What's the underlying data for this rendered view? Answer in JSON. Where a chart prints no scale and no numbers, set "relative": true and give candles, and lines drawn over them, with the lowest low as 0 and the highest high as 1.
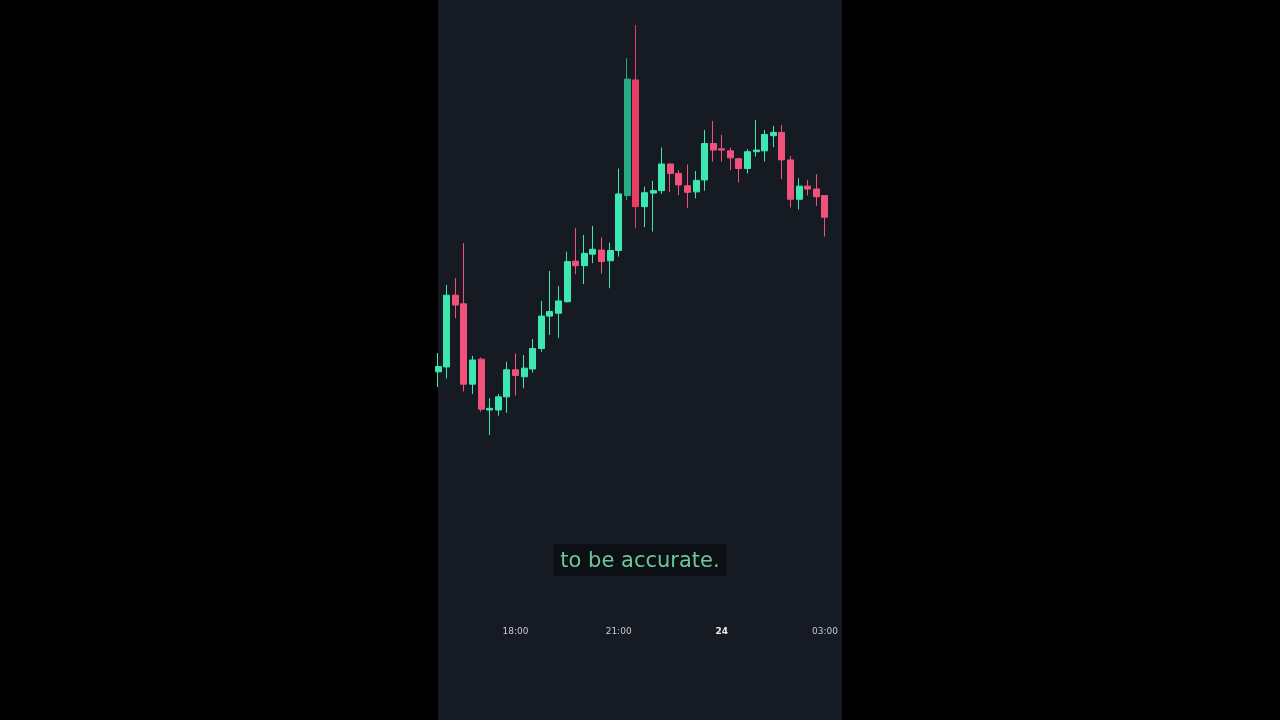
{
  "chart_data": {
    "type": "candlestick",
    "relative": true,
    "categories": [
      null,
      null,
      null,
      null,
      null,
      null,
      null,
      null,
      null,
      "18:00",
      null,
      null,
      null,
      null,
      null,
      null,
      null,
      null,
      null,
      null,
      null,
      "21:00",
      null,
      null,
      null,
      null,
      null,
      null,
      null,
      null,
      null,
      null,
      null,
      "24",
      null,
      null,
      null,
      null,
      null,
      null,
      null,
      null,
      null,
      null,
      null,
      "03:00"
    ],
    "ohlc": [
      [
        0.154,
        0.2,
        0.117,
        0.167
      ],
      [
        0.166,
        0.366,
        0.138,
        0.341
      ],
      [
        0.341,
        0.383,
        0.285,
        0.317
      ],
      [
        0.32,
        0.468,
        0.106,
        0.124
      ],
      [
        0.124,
        0.193,
        0.1,
        0.183
      ],
      [
        0.185,
        0.189,
        0.057,
        0.063
      ],
      [
        0.061,
        0.09,
        0,
        0.065
      ],
      [
        0.061,
        0.1,
        0.047,
        0.093
      ],
      [
        0.093,
        0.179,
        0.054,
        0.159
      ],
      [
        0.159,
        0.199,
        0.096,
        0.145
      ],
      [
        0.142,
        0.195,
        0.114,
        0.163
      ],
      [
        0.161,
        0.234,
        0.152,
        0.211
      ],
      [
        0.211,
        0.327,
        0.203,
        0.29
      ],
      [
        0.29,
        0.4,
        0.244,
        0.301
      ],
      [
        0.297,
        0.363,
        0.237,
        0.327
      ],
      [
        0.325,
        0.447,
        0.323,
        0.423
      ],
      [
        0.424,
        0.505,
        0.392,
        0.413
      ],
      [
        0.413,
        0.488,
        0.368,
        0.443
      ],
      [
        0.441,
        0.51,
        0.419,
        0.453
      ],
      [
        0.451,
        0.482,
        0.394,
        0.423
      ],
      [
        0.425,
        0.469,
        0.358,
        0.45
      ],
      [
        0.45,
        0.65,
        0.435,
        0.588
      ],
      [
        0.584,
        0.919,
        0.573,
        0.868
      ],
      [
        0.866,
        1,
        0.504,
        0.557
      ],
      [
        0.557,
        0.606,
        0.507,
        0.591
      ],
      [
        0.59,
        0.62,
        0.496,
        0.596
      ],
      [
        0.596,
        0.701,
        0.588,
        0.661
      ],
      [
        0.661,
        0.663,
        0.593,
        0.638
      ],
      [
        0.638,
        0.646,
        0.585,
        0.61
      ],
      [
        0.608,
        0.66,
        0.554,
        0.592
      ],
      [
        0.593,
        0.644,
        0.577,
        0.621
      ],
      [
        0.622,
        0.744,
        0.596,
        0.711
      ],
      [
        0.711,
        0.766,
        0.667,
        0.695
      ],
      [
        0.698,
        0.732,
        0.667,
        0.695
      ],
      [
        0.693,
        0.701,
        0.646,
        0.676
      ],
      [
        0.674,
        0.676,
        0.616,
        0.65
      ],
      [
        0.65,
        0.697,
        0.638,
        0.691
      ],
      [
        0.691,
        0.768,
        0.679,
        0.695
      ],
      [
        0.693,
        0.744,
        0.667,
        0.733
      ],
      [
        0.73,
        0.754,
        0.702,
        0.738
      ],
      [
        0.738,
        0.756,
        0.624,
        0.671
      ],
      [
        0.671,
        0.68,
        0.555,
        0.575
      ],
      [
        0.575,
        0.626,
        0.55,
        0.607
      ],
      [
        0.607,
        0.622,
        0.584,
        0.6
      ],
      [
        0.6,
        0.636,
        0.559,
        0.581
      ],
      [
        0.584,
        0.584,
        0.484,
        0.531
      ]
    ],
    "colors": [
      "#3ce8b0",
      "#3ce8b0",
      "#f0527c",
      "#f0527c",
      "#3ce8b0",
      "#f0527c",
      "#3ce8b0",
      "#3ce8b0",
      "#3ce8b0",
      "#f0527c",
      "#3ce8b0",
      "#3ce8b0",
      "#3ce8b0",
      "#3ce8b0",
      "#3ce8b0",
      "#3ce8b0",
      "#f0527c",
      "#3ce8b0",
      "#3ce8b0",
      "#f0527c",
      "#3ce8b0",
      "#3ce8b0",
      "#2aaa80",
      "#e83e66",
      "#3ce8b0",
      "#3ce8b0",
      "#3ce8b0",
      "#f0527c",
      "#f0527c",
      "#f0527c",
      "#3ce8b0",
      "#3ce8b0",
      "#f0527c",
      "#f0527c",
      "#f0527c",
      "#f0527c",
      "#3ce8b0",
      "#3ce8b0",
      "#3ce8b0",
      "#3ce8b0",
      "#f0527c",
      "#f0527c",
      "#3ce8b0",
      "#f0527c",
      "#f0527c",
      "#f0527c"
    ],
    "annotations": [
      "to be accurate."
    ]
  }
}
